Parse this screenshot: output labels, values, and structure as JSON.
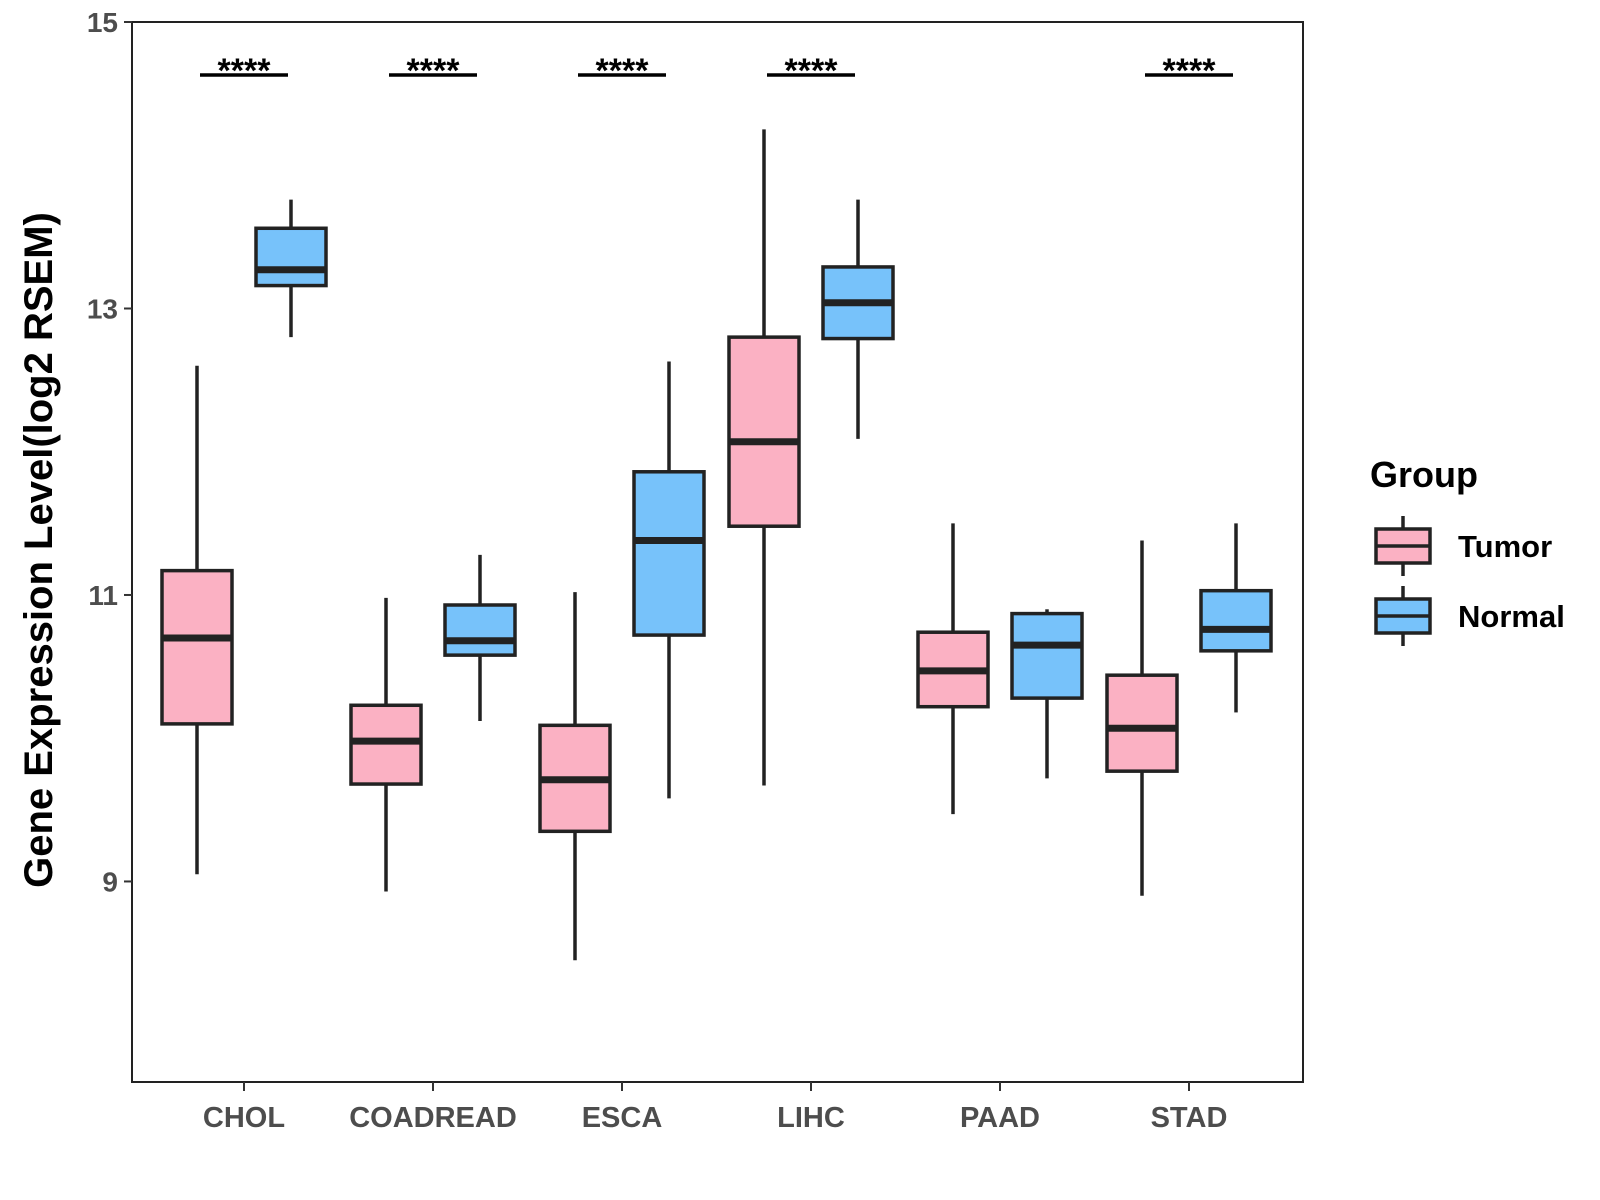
{
  "chart_data": {
    "type": "boxplot",
    "title": "",
    "xlabel": "",
    "ylabel": "Gene Expression Level(log2 RSEM)",
    "ylim": [
      7.6,
      15
    ],
    "yticks": [
      9,
      11,
      13,
      15
    ],
    "categories": [
      "CHOL",
      "COADREAD",
      "ESCA",
      "LIHC",
      "PAAD",
      "STAD"
    ],
    "legend_title": "Group",
    "legend_position": "right",
    "series": [
      {
        "name": "Tumor",
        "color": "#FBB1C3",
        "boxes": [
          {
            "whisker_low": 9.05,
            "q1": 10.1,
            "median": 10.7,
            "q3": 11.17,
            "whisker_high": 12.6
          },
          {
            "whisker_low": 8.93,
            "q1": 9.68,
            "median": 9.98,
            "q3": 10.23,
            "whisker_high": 10.98
          },
          {
            "whisker_low": 8.45,
            "q1": 9.35,
            "median": 9.71,
            "q3": 10.09,
            "whisker_high": 11.02
          },
          {
            "whisker_low": 9.67,
            "q1": 11.48,
            "median": 12.07,
            "q3": 12.8,
            "whisker_high": 14.25
          },
          {
            "whisker_low": 9.47,
            "q1": 10.22,
            "median": 10.47,
            "q3": 10.74,
            "whisker_high": 11.5
          },
          {
            "whisker_low": 8.9,
            "q1": 9.77,
            "median": 10.07,
            "q3": 10.44,
            "whisker_high": 11.38
          }
        ]
      },
      {
        "name": "Normal",
        "color": "#77C2FA",
        "boxes": [
          {
            "whisker_low": 12.8,
            "q1": 13.16,
            "median": 13.27,
            "q3": 13.56,
            "whisker_high": 13.76
          },
          {
            "whisker_low": 10.12,
            "q1": 10.58,
            "median": 10.68,
            "q3": 10.93,
            "whisker_high": 11.28
          },
          {
            "whisker_low": 9.58,
            "q1": 10.72,
            "median": 11.38,
            "q3": 11.86,
            "whisker_high": 12.63
          },
          {
            "whisker_low": 12.09,
            "q1": 12.79,
            "median": 13.04,
            "q3": 13.29,
            "whisker_high": 13.76
          },
          {
            "whisker_low": 9.72,
            "q1": 10.28,
            "median": 10.65,
            "q3": 10.87,
            "whisker_high": 10.9
          },
          {
            "whisker_low": 10.18,
            "q1": 10.61,
            "median": 10.76,
            "q3": 11.03,
            "whisker_high": 11.5
          }
        ]
      }
    ],
    "significance": [
      "****",
      "****",
      "****",
      "****",
      "",
      "****"
    ]
  }
}
